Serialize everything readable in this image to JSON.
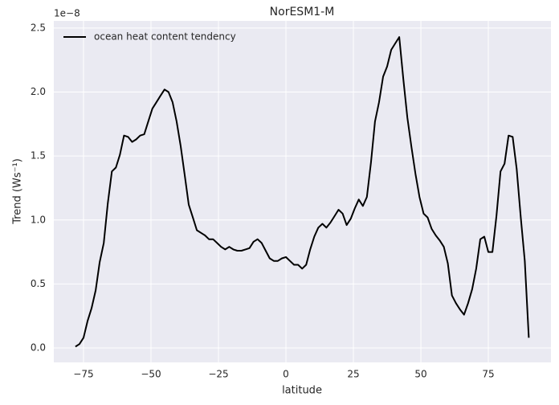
{
  "chart_data": {
    "type": "line",
    "title": "NorESM1-M",
    "xlabel": "latitude",
    "ylabel": "Trend (Ws⁻¹)",
    "y_offset_label": "1e−8",
    "legend": "upper left",
    "grid": true,
    "xlim": [
      -86,
      98.2
    ],
    "ylim": [
      -0.113,
      2.556
    ],
    "xticks": [
      {
        "value": -75,
        "label": "−75"
      },
      {
        "value": -50,
        "label": "−50"
      },
      {
        "value": -25,
        "label": "−25"
      },
      0,
      25,
      50,
      75
    ],
    "yticks": [
      {
        "value": 0,
        "label": "0.0"
      },
      0.5,
      {
        "value": 1,
        "label": "1.0"
      },
      1.5,
      {
        "value": 2,
        "label": "2.0"
      },
      2.5
    ],
    "x": [
      -78,
      -76.5,
      -75,
      -73.5,
      -72,
      -70.5,
      -69,
      -67.5,
      -66,
      -64.5,
      -63,
      -61.5,
      -60,
      -58.5,
      -57,
      -55.5,
      -54,
      -52.5,
      -51,
      -49.5,
      -48,
      -46.5,
      -45,
      -43.5,
      -42,
      -40.5,
      -39,
      -37.5,
      -36,
      -34.5,
      -33,
      -31.5,
      -30,
      -28.5,
      -27,
      -25.5,
      -24,
      -22.5,
      -21,
      -19.5,
      -18,
      -16.5,
      -15,
      -13.5,
      -12,
      -10.5,
      -9,
      -7.5,
      -6,
      -4.5,
      -3,
      -1.5,
      0,
      1.5,
      3,
      4.5,
      6,
      7.5,
      9,
      10.5,
      12,
      13.5,
      15,
      16.5,
      18,
      19.5,
      21,
      22.5,
      24,
      25.5,
      27,
      28.5,
      30,
      31.5,
      33,
      34.5,
      36,
      37.5,
      39,
      40.5,
      42,
      43.5,
      45,
      46.5,
      48,
      49.5,
      51,
      52.5,
      54,
      55.5,
      57,
      58.5,
      60,
      61.5,
      63,
      64.5,
      66,
      67.5,
      69,
      70.5,
      72,
      73.5,
      75,
      76.5,
      78,
      79.5,
      81,
      82.5,
      84,
      85.5,
      87,
      88.5,
      90
    ],
    "series": [
      {
        "name": "ocean heat content tendency",
        "color": "#000000",
        "values": [
          0.01,
          0.03,
          0.08,
          0.21,
          0.31,
          0.45,
          0.67,
          0.82,
          1.13,
          1.38,
          1.41,
          1.51,
          1.66,
          1.65,
          1.61,
          1.63,
          1.66,
          1.67,
          1.77,
          1.87,
          1.92,
          1.97,
          2.02,
          2.0,
          1.92,
          1.77,
          1.58,
          1.35,
          1.12,
          1.02,
          0.92,
          0.9,
          0.88,
          0.85,
          0.85,
          0.82,
          0.79,
          0.77,
          0.79,
          0.77,
          0.76,
          0.76,
          0.77,
          0.78,
          0.83,
          0.85,
          0.82,
          0.76,
          0.7,
          0.68,
          0.68,
          0.7,
          0.71,
          0.68,
          0.65,
          0.65,
          0.62,
          0.65,
          0.77,
          0.87,
          0.94,
          0.97,
          0.94,
          0.98,
          1.03,
          1.08,
          1.05,
          0.96,
          1.01,
          1.09,
          1.16,
          1.11,
          1.18,
          1.45,
          1.77,
          1.92,
          2.12,
          2.2,
          2.33,
          2.38,
          2.43,
          2.1,
          1.8,
          1.57,
          1.36,
          1.18,
          1.05,
          1.02,
          0.93,
          0.88,
          0.84,
          0.79,
          0.66,
          0.41,
          0.35,
          0.3,
          0.26,
          0.35,
          0.46,
          0.62,
          0.85,
          0.87,
          0.75,
          0.75,
          1.03,
          1.38,
          1.44,
          1.66,
          1.65,
          1.4,
          1.02,
          0.68,
          0.08
        ]
      }
    ]
  }
}
